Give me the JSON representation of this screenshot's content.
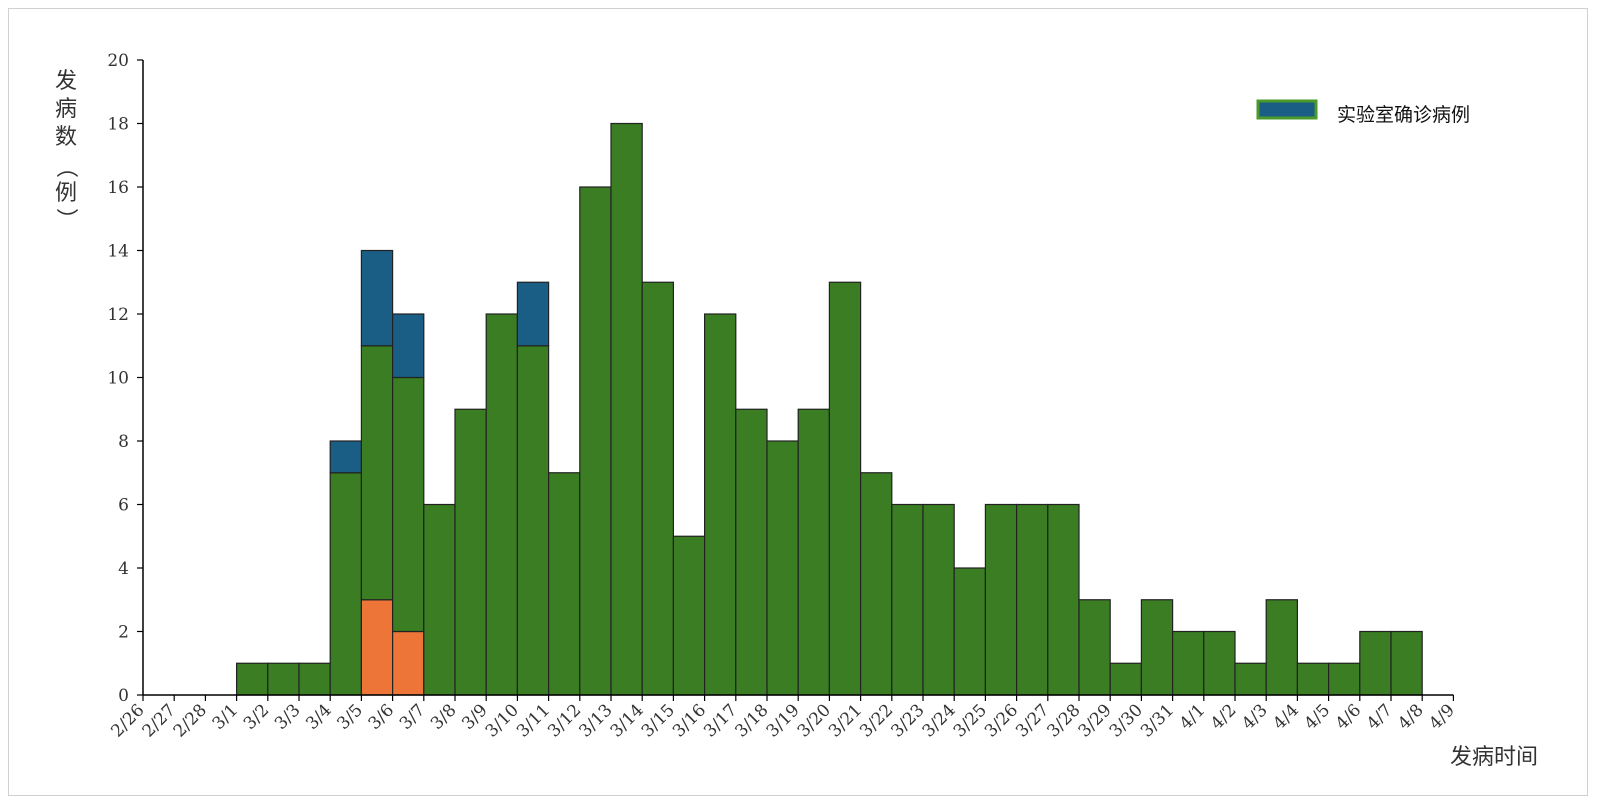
{
  "chart_data": {
    "type": "bar",
    "stacked": true,
    "title": "",
    "ylabel": "发病数（例）",
    "xlabel": "发病时间",
    "ylim": [
      0,
      20
    ],
    "ytick_step": 2,
    "categories": [
      "2/26",
      "2/27",
      "2/28",
      "3/1",
      "3/2",
      "3/3",
      "3/4",
      "3/5",
      "3/6",
      "3/7",
      "3/8",
      "3/9",
      "3/10",
      "3/11",
      "3/12",
      "3/13",
      "3/14",
      "3/15",
      "3/16",
      "3/17",
      "3/18",
      "3/19",
      "3/20",
      "3/21",
      "3/22",
      "3/23",
      "3/24",
      "3/25",
      "3/26",
      "3/27",
      "3/28",
      "3/29",
      "3/30",
      "3/31",
      "4/1",
      "4/2",
      "4/3",
      "4/4",
      "4/5",
      "4/6",
      "4/7",
      "4/8",
      "4/9"
    ],
    "series": [
      {
        "name": "",
        "color": "#ED7537",
        "values": [
          0,
          0,
          0,
          0,
          0,
          0,
          0,
          3,
          2,
          0,
          0,
          0,
          0,
          0,
          0,
          0,
          0,
          0,
          0,
          0,
          0,
          0,
          0,
          0,
          0,
          0,
          0,
          0,
          0,
          0,
          0,
          0,
          0,
          0,
          0,
          0,
          0,
          0,
          0,
          0,
          0,
          0,
          0
        ]
      },
      {
        "name": "",
        "color": "#3A7D22",
        "values": [
          0,
          0,
          0,
          1,
          1,
          1,
          7,
          8,
          8,
          6,
          9,
          12,
          11,
          7,
          16,
          18,
          13,
          5,
          12,
          9,
          8,
          9,
          13,
          7,
          6,
          6,
          4,
          6,
          6,
          6,
          3,
          1,
          3,
          2,
          2,
          1,
          3,
          1,
          1,
          2,
          2,
          0,
          0
        ]
      },
      {
        "name": "实验室确诊病例",
        "color": "#1A5E85",
        "values": [
          0,
          0,
          0,
          0,
          0,
          0,
          1,
          3,
          2,
          0,
          0,
          0,
          2,
          0,
          0,
          0,
          0,
          0,
          0,
          0,
          0,
          0,
          0,
          0,
          0,
          0,
          0,
          0,
          0,
          0,
          0,
          0,
          0,
          0,
          0,
          0,
          0,
          0,
          0,
          0,
          0,
          0,
          0
        ]
      }
    ],
    "legend": {
      "position": "top-right",
      "label": "实验室确诊病例",
      "swatch_fill": "#1A5E85",
      "swatch_border": "#4A9A2A"
    },
    "grid": false
  }
}
